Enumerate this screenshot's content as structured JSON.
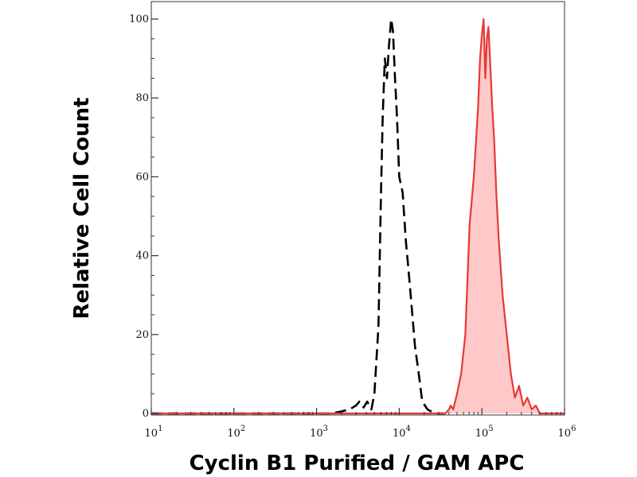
{
  "chart_data": {
    "type": "area",
    "xlabel": "Cyclin B1 Purified / GAM APC",
    "ylabel": "Relative Cell Count",
    "x_scale": "log",
    "xlim": [
      10,
      1000000
    ],
    "ylim": [
      0,
      100
    ],
    "x_ticks": [
      {
        "value": 10,
        "base": "10",
        "exp": "1"
      },
      {
        "value": 100,
        "base": "10",
        "exp": "2"
      },
      {
        "value": 1000,
        "base": "10",
        "exp": "3"
      },
      {
        "value": 10000,
        "base": "10",
        "exp": "4"
      },
      {
        "value": 100000,
        "base": "10",
        "exp": "5"
      },
      {
        "value": 1000000,
        "base": "10",
        "exp": "6"
      }
    ],
    "y_ticks": [
      {
        "value": 0,
        "label": "0"
      },
      {
        "value": 20,
        "label": "20"
      },
      {
        "value": 40,
        "label": "40"
      },
      {
        "value": 60,
        "label": "60"
      },
      {
        "value": 80,
        "label": "80"
      },
      {
        "value": 100,
        "label": "100"
      }
    ],
    "grid": false,
    "series": [
      {
        "style": "dashed",
        "color": "#000000",
        "fill": "none",
        "x": [
          10,
          1000,
          1500,
          2000,
          2500,
          3000,
          3300,
          3700,
          4100,
          4600,
          5000,
          5600,
          6000,
          6300,
          6700,
          7100,
          7500,
          8000,
          8400,
          8900,
          9400,
          10000,
          11000,
          12000,
          13000,
          14000,
          15500,
          17000,
          19000,
          22000,
          27000,
          35000
        ],
        "y": [
          0,
          0,
          0,
          0.5,
          1,
          2,
          3,
          1.5,
          3,
          1,
          5,
          22,
          55,
          75,
          90,
          85,
          93,
          100,
          97,
          85,
          75,
          60,
          56,
          44,
          36,
          28,
          17,
          11,
          3,
          1,
          0,
          0
        ]
      },
      {
        "style": "solid",
        "color": "#e53935",
        "fill": "#ffc9c9",
        "x": [
          10,
          30000,
          36000,
          40000,
          42000,
          45000,
          50000,
          56000,
          63000,
          71000,
          80000,
          90000,
          95000,
          100000,
          105000,
          110000,
          115000,
          120000,
          126000,
          133000,
          141000,
          150000,
          160000,
          178000,
          200000,
          224000,
          251000,
          282000,
          316000,
          355000,
          400000,
          450000,
          500000,
          600000,
          1000000
        ],
        "y": [
          0,
          0,
          0,
          1,
          2,
          1,
          5,
          10,
          20,
          48,
          60,
          78,
          90,
          96,
          100,
          85,
          95,
          98,
          89,
          78,
          69,
          55,
          44,
          30,
          20,
          10,
          4,
          7,
          2,
          4,
          1,
          2,
          0,
          0,
          0
        ]
      }
    ]
  }
}
